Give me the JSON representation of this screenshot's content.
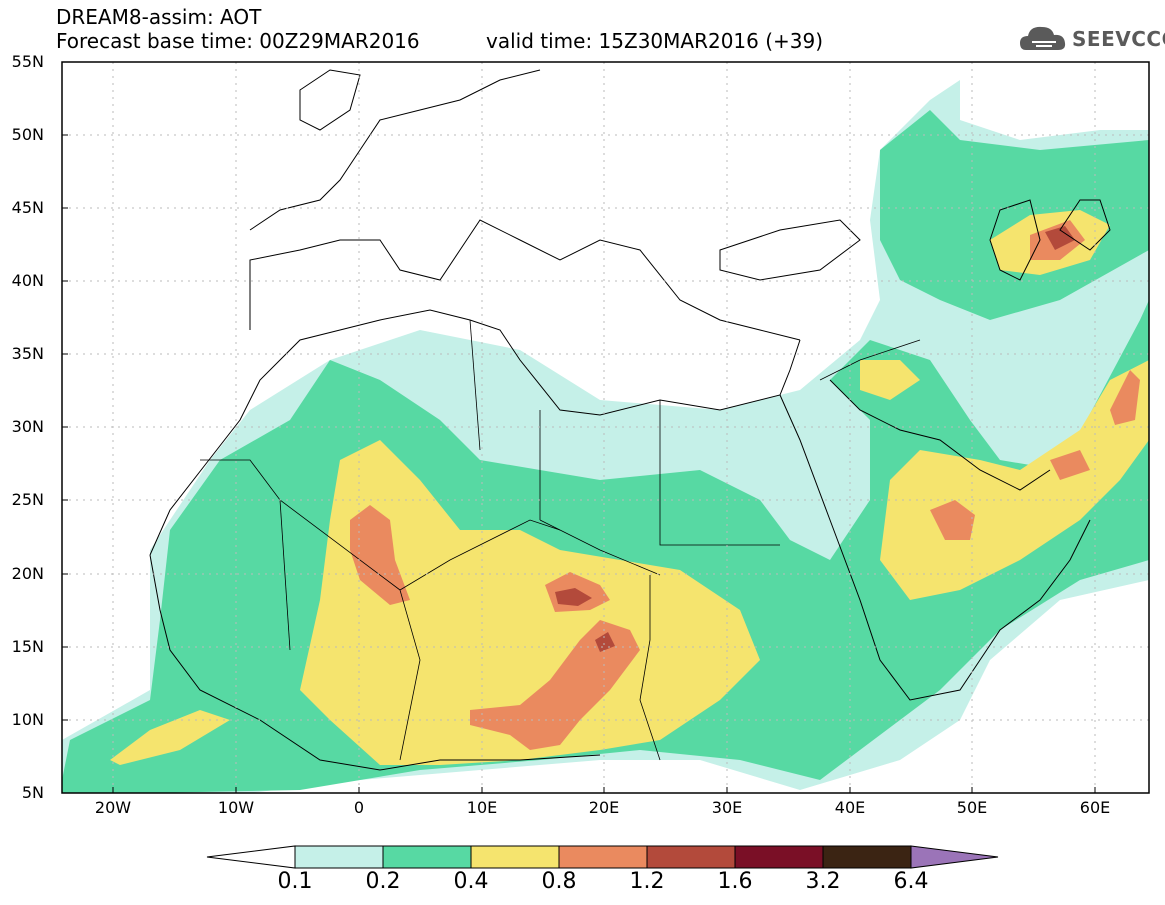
{
  "header": {
    "title": "DREAM8-assim: AOT",
    "base_time": "Forecast base time: 00Z29MAR2016",
    "valid_time": "valid time: 15Z30MAR2016 (+39)"
  },
  "logo": {
    "text": "SEEVCCC",
    "icon": "cloud-icon",
    "color": "#5a5a5a"
  },
  "axes": {
    "lat_labels": [
      "55N",
      "50N",
      "45N",
      "40N",
      "35N",
      "30N",
      "25N",
      "20N",
      "15N",
      "10N",
      "5N"
    ],
    "lon_labels": [
      "20W",
      "10W",
      "0",
      "10E",
      "20E",
      "30E",
      "40E",
      "50E",
      "60E"
    ]
  },
  "legend": {
    "thresholds": [
      "0.1",
      "0.2",
      "0.4",
      "0.8",
      "1.2",
      "1.6",
      "3.2",
      "6.4"
    ],
    "colors": [
      "#c5f0e8",
      "#57d9a3",
      "#f5e46e",
      "#ea8a5f",
      "#b34a3b",
      "#7a0f26",
      "#3b2413",
      "#9b74b8"
    ],
    "below_color": "#ffffff"
  },
  "colors": {
    "border": "#000000",
    "grid": "#bbbbbb"
  }
}
